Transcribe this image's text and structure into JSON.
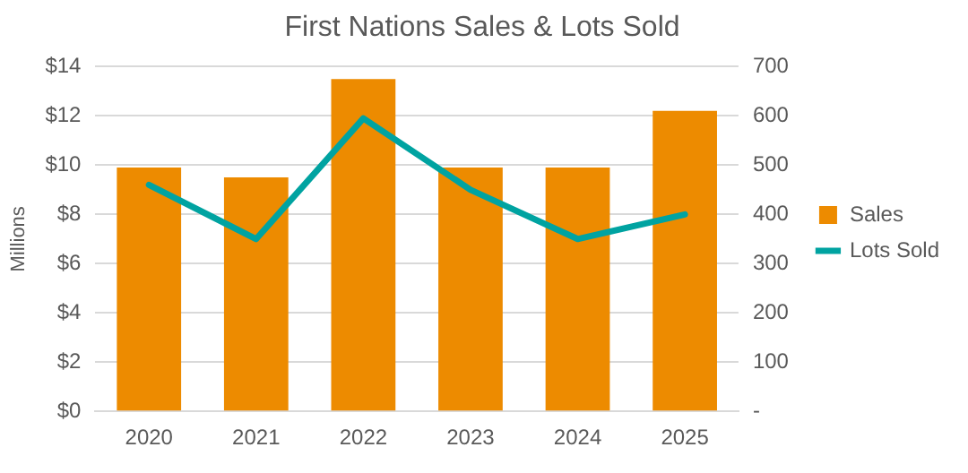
{
  "chart_data": {
    "type": "bar",
    "title": "First Nations Sales & Lots Sold",
    "ylabel": "Millions",
    "categories": [
      "2020",
      "2021",
      "2022",
      "2023",
      "2024",
      "2025"
    ],
    "series": [
      {
        "name": "Sales",
        "color": "#ed8b00",
        "values": [
          9.9,
          9.5,
          13.5,
          9.9,
          9.9,
          12.2
        ]
      },
      {
        "name": "Lots Sold",
        "type": "line",
        "axis": "y2",
        "color": "#00a3a1",
        "values": [
          460,
          350,
          595,
          450,
          350,
          400
        ]
      }
    ],
    "ylim": [
      0,
      14
    ],
    "yticks": [
      {
        "value": 0,
        "label": "$0"
      },
      {
        "value": 2,
        "label": "$2"
      },
      {
        "value": 4,
        "label": "$4"
      },
      {
        "value": 6,
        "label": "$6"
      },
      {
        "value": 8,
        "label": "$8"
      },
      {
        "value": 10,
        "label": "$10"
      },
      {
        "value": 12,
        "label": "$12"
      },
      {
        "value": 14,
        "label": "$14"
      }
    ],
    "y2lim": [
      0,
      700
    ],
    "y2ticks": [
      {
        "value": 0,
        "label": "-"
      },
      100,
      200,
      300,
      400,
      500,
      600,
      700
    ],
    "grid": "y",
    "legend": "right",
    "marker": "none"
  }
}
